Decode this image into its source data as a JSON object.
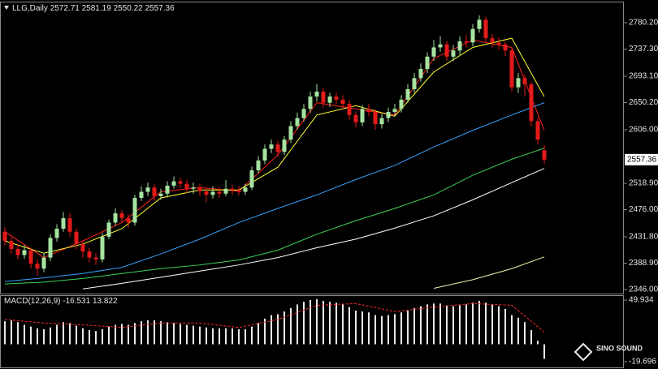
{
  "watermark": "SINO SOUND",
  "chart_data": [
    {
      "type": "candlestick",
      "symbol": "LLG,Daily",
      "open": [
        2440,
        2425,
        2412,
        2402,
        2410,
        2388,
        2380,
        2398,
        2430,
        2445,
        2462,
        2440,
        2420,
        2408,
        2398,
        2395,
        2432,
        2455,
        2470,
        2462,
        2455,
        2495,
        2505,
        2512,
        2498,
        2502,
        2515,
        2522,
        2518,
        2510,
        2512,
        2506,
        2500,
        2505,
        2502,
        2510,
        2508,
        2505,
        2512,
        2540,
        2556,
        2575,
        2582,
        2570,
        2590,
        2612,
        2625,
        2640,
        2660,
        2668,
        2650,
        2660,
        2655,
        2648,
        2630,
        2618,
        2640,
        2635,
        2615,
        2625,
        2635,
        2640,
        2655,
        2672,
        2690,
        2705,
        2725,
        2740,
        2745,
        2725,
        2735,
        2750,
        2748,
        2770,
        2785,
        2755,
        2748,
        2745,
        2735,
        2675,
        2690,
        2680,
        2620,
        2572.71
      ],
      "high": [
        2448,
        2431,
        2420,
        2418,
        2414,
        2395,
        2404,
        2436,
        2452,
        2472,
        2470,
        2446,
        2426,
        2414,
        2405,
        2438,
        2460,
        2478,
        2476,
        2468,
        2500,
        2514,
        2520,
        2517,
        2510,
        2522,
        2530,
        2528,
        2524,
        2520,
        2518,
        2512,
        2514,
        2512,
        2524,
        2516,
        2514,
        2518,
        2546,
        2563,
        2582,
        2590,
        2588,
        2596,
        2620,
        2634,
        2648,
        2668,
        2680,
        2674,
        2666,
        2667,
        2662,
        2654,
        2636,
        2646,
        2648,
        2640,
        2632,
        2642,
        2648,
        2662,
        2680,
        2698,
        2714,
        2732,
        2752,
        2758,
        2750,
        2744,
        2758,
        2760,
        2778,
        2792,
        2790,
        2762,
        2756,
        2750,
        2740,
        2698,
        2696,
        2684,
        2626,
        2581.19
      ],
      "low": [
        2418,
        2404,
        2395,
        2396,
        2380,
        2368,
        2374,
        2392,
        2424,
        2440,
        2432,
        2412,
        2398,
        2390,
        2386,
        2390,
        2428,
        2450,
        2455,
        2446,
        2450,
        2490,
        2498,
        2490,
        2492,
        2496,
        2510,
        2511,
        2503,
        2502,
        2498,
        2488,
        2494,
        2495,
        2498,
        2500,
        2499,
        2500,
        2508,
        2535,
        2550,
        2568,
        2562,
        2565,
        2585,
        2606,
        2619,
        2634,
        2652,
        2642,
        2643,
        2648,
        2640,
        2622,
        2610,
        2612,
        2628,
        2606,
        2608,
        2618,
        2628,
        2634,
        2650,
        2666,
        2684,
        2698,
        2718,
        2733,
        2718,
        2718,
        2728,
        2740,
        2742,
        2764,
        2748,
        2740,
        2736,
        2726,
        2668,
        2666,
        2660,
        2612,
        2582,
        2550.22
      ],
      "close": [
        2425,
        2412,
        2402,
        2410,
        2388,
        2380,
        2398,
        2430,
        2445,
        2462,
        2440,
        2420,
        2408,
        2398,
        2395,
        2432,
        2455,
        2470,
        2462,
        2455,
        2495,
        2505,
        2512,
        2498,
        2502,
        2515,
        2522,
        2518,
        2510,
        2512,
        2506,
        2500,
        2505,
        2502,
        2510,
        2508,
        2505,
        2512,
        2540,
        2556,
        2575,
        2582,
        2570,
        2590,
        2612,
        2625,
        2640,
        2660,
        2668,
        2650,
        2660,
        2655,
        2648,
        2630,
        2618,
        2640,
        2635,
        2615,
        2625,
        2635,
        2640,
        2655,
        2672,
        2690,
        2705,
        2725,
        2740,
        2745,
        2725,
        2735,
        2750,
        2748,
        2770,
        2785,
        2755,
        2748,
        2745,
        2735,
        2675,
        2690,
        2680,
        2620,
        2590,
        2557.36
      ],
      "up_color": "#a6e3a1",
      "down_color": "#e31a1a",
      "ylim": [
        2339.4,
        2814.5
      ],
      "yticks": [
        {
          "value": 2780.2,
          "label": "2780.20"
        },
        {
          "value": 2737.3,
          "label": "2737.30"
        },
        {
          "value": 2693.1,
          "label": "2693.10"
        },
        {
          "value": 2650.2,
          "label": "2650.20"
        },
        {
          "value": 2606,
          "label": "2606.00"
        },
        {
          "value": 2518.9,
          "label": "2518.90"
        },
        {
          "value": 2476,
          "label": "2476.00"
        },
        {
          "value": 2431.8,
          "label": "2431.80"
        },
        {
          "value": 2388.9,
          "label": "2388.90"
        },
        {
          "value": 2346,
          "label": "2346.00"
        }
      ],
      "overlays": [
        {
          "color": "#ff2020",
          "x": [
            0,
            6,
            12,
            18,
            24,
            30,
            36,
            42,
            48,
            54,
            60,
            66,
            72,
            78,
            83
          ],
          "values": [
            2440,
            2398,
            2425,
            2455,
            2505,
            2512,
            2506,
            2565,
            2650,
            2640,
            2630,
            2722,
            2752,
            2740,
            2605
          ]
        },
        {
          "color": "#ffff30",
          "x": [
            0,
            6,
            12,
            18,
            24,
            30,
            36,
            42,
            48,
            54,
            60,
            66,
            72,
            78,
            83
          ],
          "values": [
            2425,
            2405,
            2420,
            2445,
            2495,
            2508,
            2508,
            2545,
            2630,
            2645,
            2628,
            2700,
            2740,
            2755,
            2660
          ]
        },
        {
          "color": "#3aa0ff",
          "x": [
            0,
            6,
            12,
            18,
            24,
            30,
            36,
            42,
            48,
            54,
            60,
            66,
            72,
            78,
            83
          ],
          "values": [
            2359,
            2365,
            2372,
            2382,
            2404,
            2428,
            2455,
            2478,
            2500,
            2525,
            2548,
            2578,
            2605,
            2630,
            2650
          ]
        },
        {
          "color": "#3cd25a",
          "x": [
            0,
            6,
            12,
            18,
            24,
            30,
            36,
            42,
            48,
            54,
            60,
            66,
            72,
            78,
            83
          ],
          "values": [
            2355,
            2358,
            2364,
            2372,
            2380,
            2386,
            2394,
            2410,
            2436,
            2458,
            2478,
            2500,
            2532,
            2558,
            2576
          ]
        },
        {
          "color": "#ffffff",
          "x": [
            0,
            6,
            12,
            18,
            24,
            30,
            36,
            42,
            48,
            54,
            60,
            66,
            72,
            78,
            83
          ],
          "values": [
            null,
            null,
            2347,
            2356,
            2366,
            2376,
            2386,
            2398,
            2414,
            2428,
            2446,
            2466,
            2492,
            2520,
            2543
          ]
        },
        {
          "color": "#f5f0b0",
          "x": [
            0,
            6,
            12,
            18,
            24,
            30,
            36,
            42,
            48,
            54,
            60,
            66,
            72,
            78,
            83
          ],
          "values": [
            null,
            null,
            null,
            null,
            null,
            null,
            null,
            null,
            null,
            null,
            null,
            2348,
            2362,
            2380,
            2399
          ]
        }
      ]
    },
    {
      "type": "macd",
      "title": "MACD(12,26,9)",
      "values": [
        26,
        27,
        25,
        22,
        20,
        18,
        17,
        19,
        22,
        25,
        24,
        21,
        18,
        16,
        15,
        17,
        20,
        22,
        23,
        22,
        24,
        26,
        27,
        27,
        26,
        25,
        24,
        23,
        22,
        21,
        20,
        19,
        18,
        18,
        18,
        18,
        17,
        17,
        20,
        24,
        29,
        33,
        34,
        37,
        41,
        45,
        48,
        50,
        51,
        49,
        48,
        47,
        45,
        42,
        38,
        37,
        36,
        33,
        32,
        33,
        34,
        36,
        38,
        41,
        43,
        45,
        46,
        46,
        44,
        43,
        44,
        45,
        47,
        49,
        47,
        45,
        43,
        40,
        33,
        30,
        25,
        16,
        4,
        -16.531
      ],
      "color": "#e8e8e8",
      "signal": {
        "color": "#ff2a2a",
        "x": [
          0,
          6,
          12,
          18,
          24,
          30,
          36,
          42,
          48,
          54,
          60,
          66,
          72,
          78,
          83
        ],
        "values": [
          28,
          24,
          22,
          19,
          24,
          24,
          19,
          28,
          44,
          46,
          37,
          42,
          46,
          44,
          13.822
        ]
      },
      "ylim": [
        -26.1,
        55.43
      ],
      "yticks": [
        49.934,
        -19.696
      ]
    }
  ]
}
